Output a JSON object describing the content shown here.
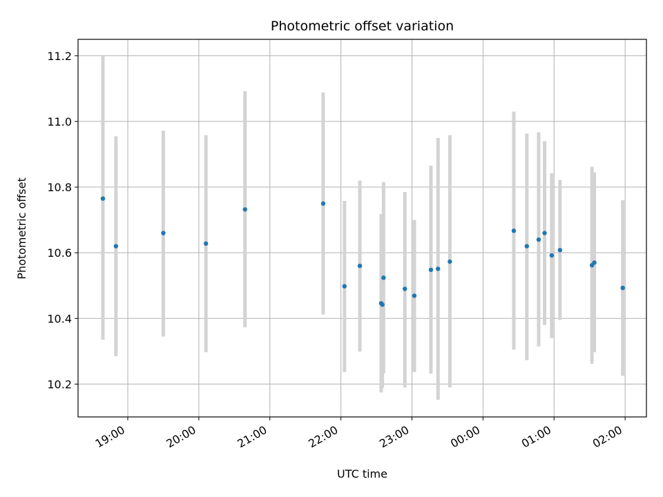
{
  "chart_data": {
    "type": "scatter",
    "title": "Photometric offset variation",
    "xlabel": "UTC time",
    "ylabel": "Photometric offset",
    "x_ticks": [
      {
        "x": "19:00",
        "label": "19:00"
      },
      {
        "x": "20:00",
        "label": "20:00"
      },
      {
        "x": "21:00",
        "label": "21:00"
      },
      {
        "x": "22:00",
        "label": "22:00"
      },
      {
        "x": "23:00",
        "label": "23:00"
      },
      {
        "x": "24:00",
        "label": "00:00"
      },
      {
        "x": "25:00",
        "label": "01:00"
      },
      {
        "x": "26:00",
        "label": "02:00"
      }
    ],
    "xlim": [
      "18:18",
      "26:18"
    ],
    "y_ticks": [
      10.2,
      10.4,
      10.6,
      10.8,
      11.0,
      11.2
    ],
    "ylim": [
      10.1,
      11.25
    ],
    "grid": true,
    "colors": {
      "point": "#1f77b4",
      "errorbar": "#d3d3d3",
      "grid": "#b0b0b0"
    },
    "points": [
      {
        "x": "18:39",
        "y": 10.765,
        "ylo": 10.335,
        "yhi": 11.2
      },
      {
        "x": "18:50",
        "y": 10.62,
        "ylo": 10.285,
        "yhi": 10.955
      },
      {
        "x": "19:30",
        "y": 10.66,
        "ylo": 10.345,
        "yhi": 10.972
      },
      {
        "x": "20:06",
        "y": 10.628,
        "ylo": 10.297,
        "yhi": 10.958
      },
      {
        "x": "20:39",
        "y": 10.732,
        "ylo": 10.373,
        "yhi": 11.092
      },
      {
        "x": "21:45",
        "y": 10.75,
        "ylo": 10.412,
        "yhi": 11.088
      },
      {
        "x": "22:03",
        "y": 10.498,
        "ylo": 10.237,
        "yhi": 10.758
      },
      {
        "x": "22:16",
        "y": 10.56,
        "ylo": 10.299,
        "yhi": 10.82
      },
      {
        "x": "22:34",
        "y": 10.446,
        "ylo": 10.175,
        "yhi": 10.718
      },
      {
        "x": "22:35",
        "y": 10.442,
        "ylo": 10.188,
        "yhi": 10.693
      },
      {
        "x": "22:36",
        "y": 10.524,
        "ylo": 10.233,
        "yhi": 10.815
      },
      {
        "x": "22:54",
        "y": 10.49,
        "ylo": 10.19,
        "yhi": 10.785
      },
      {
        "x": "23:02",
        "y": 10.469,
        "ylo": 10.237,
        "yhi": 10.7
      },
      {
        "x": "23:16",
        "y": 10.548,
        "ylo": 10.232,
        "yhi": 10.865
      },
      {
        "x": "23:22",
        "y": 10.551,
        "ylo": 10.152,
        "yhi": 10.95
      },
      {
        "x": "23:32",
        "y": 10.573,
        "ylo": 10.19,
        "yhi": 10.958
      },
      {
        "x": "24:26",
        "y": 10.667,
        "ylo": 10.305,
        "yhi": 11.03
      },
      {
        "x": "24:37",
        "y": 10.62,
        "ylo": 10.273,
        "yhi": 10.963
      },
      {
        "x": "24:47",
        "y": 10.64,
        "ylo": 10.315,
        "yhi": 10.967
      },
      {
        "x": "24:52",
        "y": 10.66,
        "ylo": 10.38,
        "yhi": 10.94
      },
      {
        "x": "24:58",
        "y": 10.592,
        "ylo": 10.34,
        "yhi": 10.842
      },
      {
        "x": "25:05",
        "y": 10.608,
        "ylo": 10.395,
        "yhi": 10.822
      },
      {
        "x": "25:32",
        "y": 10.562,
        "ylo": 10.262,
        "yhi": 10.862
      },
      {
        "x": "25:34",
        "y": 10.57,
        "ylo": 10.297,
        "yhi": 10.845
      },
      {
        "x": "25:58",
        "y": 10.493,
        "ylo": 10.225,
        "yhi": 10.76
      }
    ]
  }
}
